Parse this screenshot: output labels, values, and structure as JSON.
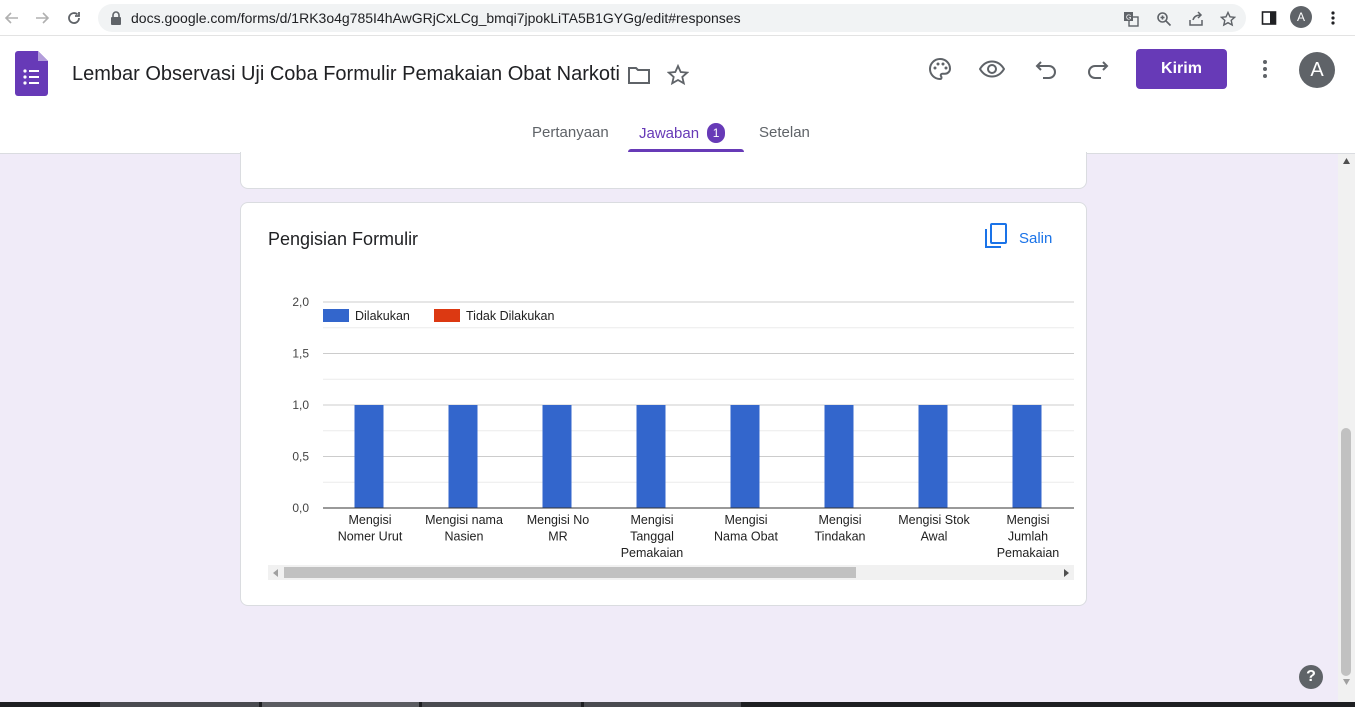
{
  "browser": {
    "url": "docs.google.com/forms/d/1RK3o4g785I4hAwGRjCxLCg_bmqi7jpokLiTA5B1GYGg/edit#responses",
    "profile_initial": "A"
  },
  "header": {
    "title": "Lembar Observasi Uji Coba Formulir Pemakaian Obat Narkotika",
    "send_label": "Kirim",
    "avatar_initial": "A"
  },
  "tabs": [
    {
      "label": "Pertanyaan"
    },
    {
      "label": "Jawaban",
      "badge": "1"
    },
    {
      "label": "Setelan"
    }
  ],
  "card": {
    "title": "Pengisian Formulir",
    "copy_label": "Salin"
  },
  "colors": {
    "accent": "#673ab7",
    "series_done": "#3366cc",
    "series_not_done": "#dc3912"
  },
  "chart_data": {
    "type": "bar",
    "title": "Pengisian Formulir",
    "categories": [
      [
        "Mengisi",
        "Nomer Urut"
      ],
      [
        "Mengisi nama",
        "Nasien"
      ],
      [
        "Mengisi No",
        "MR"
      ],
      [
        "Mengisi",
        "Tanggal",
        "Pemakaian"
      ],
      [
        "Mengisi",
        "Nama Obat"
      ],
      [
        "Mengisi",
        "Tindakan"
      ],
      [
        "Mengisi Stok",
        "Awal"
      ],
      [
        "Mengisi",
        "Jumlah",
        "Pemakaian"
      ]
    ],
    "series": [
      {
        "name": "Dilakukan",
        "values": [
          1,
          1,
          1,
          1,
          1,
          1,
          1,
          1
        ]
      },
      {
        "name": "Tidak Dilakukan",
        "values": [
          0,
          0,
          0,
          0,
          0,
          0,
          0,
          0
        ]
      }
    ],
    "y_ticks": [
      "0,0",
      "0,5",
      "1,0",
      "1,5",
      "2,0"
    ],
    "ylim": [
      0,
      2
    ],
    "legend_position": "top-left"
  },
  "help_label": "?"
}
